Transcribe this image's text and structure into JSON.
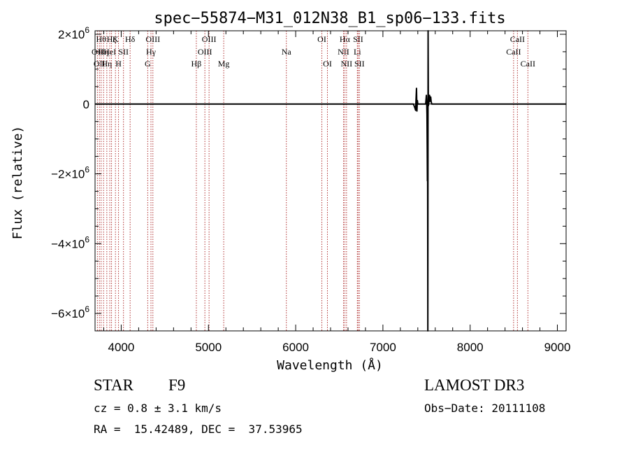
{
  "chart_data": {
    "type": "line",
    "title": "spec−55874−M31_012N38_B1_sp06−133.fits",
    "xlabel": "Wavelength (Å)",
    "ylabel": "Flux (relative)",
    "xlim": [
      3700,
      9100
    ],
    "ylim": [
      -6500000,
      2100000
    ],
    "x_ticks": [
      4000,
      5000,
      6000,
      7000,
      8000,
      9000
    ],
    "y_ticks": [
      {
        "value": -6000000,
        "mantissa": "−6×10",
        "exp": "6"
      },
      {
        "value": -4000000,
        "mantissa": "−4×10",
        "exp": "6"
      },
      {
        "value": -2000000,
        "mantissa": "−2×10",
        "exp": "6"
      },
      {
        "value": 0,
        "mantissa": "0",
        "exp": ""
      },
      {
        "value": 2000000,
        "mantissa": "2×10",
        "exp": "6"
      }
    ],
    "zero_line": true,
    "grid": false,
    "series": [
      {
        "color": "#000000",
        "points": [
          [
            3700,
            0
          ],
          [
            7350,
            0
          ],
          [
            7365,
            -100000
          ],
          [
            7375,
            -180000
          ],
          [
            7380,
            150000
          ],
          [
            7385,
            450000
          ],
          [
            7390,
            -200000
          ],
          [
            7395,
            100000
          ],
          [
            7400,
            0
          ],
          [
            7490,
            0
          ],
          [
            7498,
            250000
          ],
          [
            7502,
            50000
          ],
          [
            7505,
            -300000
          ],
          [
            7508,
            -1300000
          ],
          [
            7510,
            -2200000
          ],
          [
            7512,
            -1100000
          ],
          [
            7515,
            -6500000
          ],
          [
            7518,
            2100000
          ],
          [
            7521,
            -50000
          ],
          [
            7530,
            100000
          ],
          [
            7535,
            250000
          ],
          [
            7540,
            80000
          ],
          [
            7548,
            200000
          ],
          [
            7553,
            70000
          ],
          [
            7560,
            0
          ],
          [
            9100,
            0
          ]
        ]
      }
    ],
    "line_markers_color": "#b03030",
    "line_markers": [
      {
        "wl": 3727,
        "label": "OII",
        "row": 2
      },
      {
        "wl": 3750,
        "label": "OII",
        "row": 3
      },
      {
        "wl": 3770,
        "label": "Hθ",
        "row": 1
      },
      {
        "wl": 3798,
        "label": "Hη",
        "row": 2
      },
      {
        "wl": 3835,
        "label": "Hη",
        "row": 3
      },
      {
        "wl": 3869,
        "label": "HeI",
        "row": 2
      },
      {
        "wl": 3889,
        "label": "Hζ",
        "row": 1
      },
      {
        "wl": 3934,
        "label": "K",
        "row": 1
      },
      {
        "wl": 3969,
        "label": "H",
        "row": 3
      },
      {
        "wl": 4026,
        "label": "SII",
        "row": 2
      },
      {
        "wl": 4102,
        "label": "Hδ",
        "row": 1
      },
      {
        "wl": 4304,
        "label": "G",
        "row": 3
      },
      {
        "wl": 4341,
        "label": "Hγ",
        "row": 2
      },
      {
        "wl": 4363,
        "label": "OIII",
        "row": 1
      },
      {
        "wl": 4861,
        "label": "Hβ",
        "row": 3
      },
      {
        "wl": 4959,
        "label": "OIII",
        "row": 2
      },
      {
        "wl": 5007,
        "label": "OIII",
        "row": 1
      },
      {
        "wl": 5175,
        "label": "Mg",
        "row": 3
      },
      {
        "wl": 5893,
        "label": "Na",
        "row": 2
      },
      {
        "wl": 6300,
        "label": "OI",
        "row": 1
      },
      {
        "wl": 6364,
        "label": "OI",
        "row": 3
      },
      {
        "wl": 6548,
        "label": "NII",
        "row": 2
      },
      {
        "wl": 6563,
        "label": "Hα",
        "row": 1
      },
      {
        "wl": 6583,
        "label": "NII",
        "row": 3
      },
      {
        "wl": 6707,
        "label": "Li",
        "row": 2
      },
      {
        "wl": 6716,
        "label": "SII",
        "row": 1
      },
      {
        "wl": 6731,
        "label": "SII",
        "row": 3
      },
      {
        "wl": 8498,
        "label": "CaII",
        "row": 2
      },
      {
        "wl": 8542,
        "label": "CaII",
        "row": 1
      },
      {
        "wl": 8662,
        "label": "CaII",
        "row": 3
      }
    ]
  },
  "info": {
    "class": "STAR",
    "subclass": "F9",
    "survey": "LAMOST DR3",
    "redshift": "cz = 0.8 ± 3.1 km/s",
    "obs_date": "Obs−Date: 20111108",
    "coords": "RA =  15.42489, DEC =  37.53965"
  }
}
